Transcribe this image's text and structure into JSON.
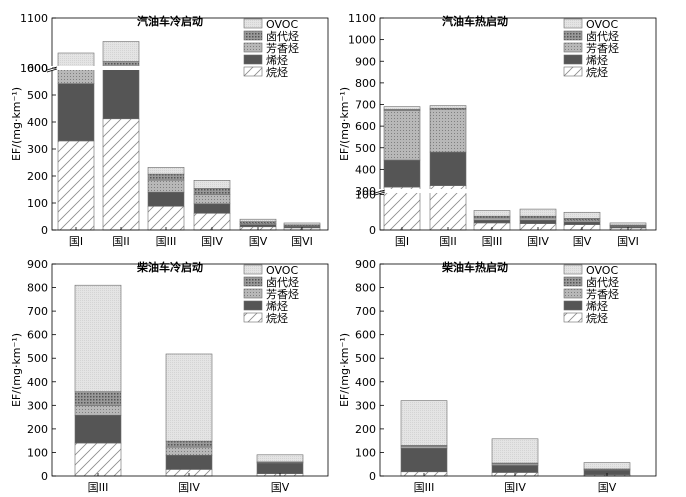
{
  "legend_labels": [
    "OVOC",
    "卤代烃",
    "芳香烃",
    "烯烃",
    "烷烃"
  ],
  "colors": {
    "OVOC": "#e6e6e6",
    "卤代烃": "#7a7a7a",
    "芳香烃": "#a6a6a6",
    "烯烃": "#555555",
    "烷烃": "#ffffff",
    "axis": "#000000"
  },
  "chart_data": [
    {
      "type": "bar",
      "stacked": true,
      "title": "汽油车冷启动",
      "ylabel": "EF/(mg·km⁻¹)",
      "axis_break": {
        "lower": [
          0,
          600
        ],
        "upper": [
          1000,
          1100
        ]
      },
      "yticks": [
        0,
        100,
        200,
        300,
        400,
        500,
        600,
        1000,
        1100
      ],
      "categories": [
        "国I",
        "国II",
        "国III",
        "国IV",
        "国V",
        "国VI"
      ],
      "series": [
        {
          "name": "烷烃",
          "values": [
            330,
            412,
            88,
            62,
            12,
            8
          ]
        },
        {
          "name": "烯烃",
          "values": [
            212,
            218,
            52,
            35,
            8,
            5
          ]
        },
        {
          "name": "芳香烃",
          "values": [
            418,
            368,
            45,
            35,
            5,
            2
          ]
        },
        {
          "name": "卤代烃",
          "values": [
            10,
            15,
            22,
            22,
            6,
            4
          ]
        },
        {
          "name": "OVOC",
          "values": [
            60,
            40,
            25,
            30,
            9,
            7
          ]
        }
      ],
      "legend": "top-right"
    },
    {
      "type": "bar",
      "stacked": true,
      "title": "汽油车热启动",
      "ylabel": "EF/(mg·km⁻¹)",
      "axis_break": {
        "lower": [
          0,
          110
        ],
        "upper": [
          300,
          1100
        ]
      },
      "yticks": [
        0,
        100,
        300,
        400,
        500,
        600,
        700,
        800,
        900,
        1000,
        1100
      ],
      "categories": [
        "国I",
        "国II",
        "国III",
        "国IV",
        "国V",
        "国VI"
      ],
      "series": [
        {
          "name": "烷烃",
          "values": [
            318,
            325,
            20,
            18,
            15,
            6
          ]
        },
        {
          "name": "烯烃",
          "values": [
            125,
            155,
            8,
            10,
            8,
            4
          ]
        },
        {
          "name": "芳香烃",
          "values": [
            230,
            198,
            6,
            6,
            5,
            2
          ]
        },
        {
          "name": "卤代烃",
          "values": [
            5,
            5,
            5,
            5,
            5,
            2
          ]
        },
        {
          "name": "OVOC",
          "values": [
            12,
            12,
            16,
            20,
            17,
            6
          ]
        }
      ],
      "legend": "top-right"
    },
    {
      "type": "bar",
      "stacked": true,
      "title": "柴油车冷启动",
      "ylabel": "EF/(mg·km⁻¹)",
      "ylim": [
        0,
        900
      ],
      "yticks": [
        0,
        100,
        200,
        300,
        400,
        500,
        600,
        700,
        800,
        900
      ],
      "categories": [
        "国III",
        "国IV",
        "国V"
      ],
      "series": [
        {
          "name": "烷烃",
          "values": [
            140,
            28,
            10
          ]
        },
        {
          "name": "烯烃",
          "values": [
            118,
            60,
            45
          ]
        },
        {
          "name": "芳香烃",
          "values": [
            42,
            35,
            3
          ]
        },
        {
          "name": "卤代烃",
          "values": [
            58,
            25,
            2
          ]
        },
        {
          "name": "OVOC",
          "values": [
            452,
            370,
            30
          ]
        }
      ],
      "legend": "top-right"
    },
    {
      "type": "bar",
      "stacked": true,
      "title": "柴油车热启动",
      "ylabel": "EF/(mg·km⁻¹)",
      "ylim": [
        0,
        900
      ],
      "yticks": [
        0,
        100,
        200,
        300,
        400,
        500,
        600,
        700,
        800,
        900
      ],
      "categories": [
        "国III",
        "国IV",
        "国V"
      ],
      "series": [
        {
          "name": "烷烃",
          "values": [
            18,
            15,
            5
          ]
        },
        {
          "name": "烯烃",
          "values": [
            100,
            30,
            20
          ]
        },
        {
          "name": "芳香烃",
          "values": [
            6,
            6,
            3
          ]
        },
        {
          "name": "卤代烃",
          "values": [
            6,
            4,
            2
          ]
        },
        {
          "name": "OVOC",
          "values": [
            190,
            103,
            27
          ]
        }
      ],
      "legend": "top-right"
    }
  ]
}
